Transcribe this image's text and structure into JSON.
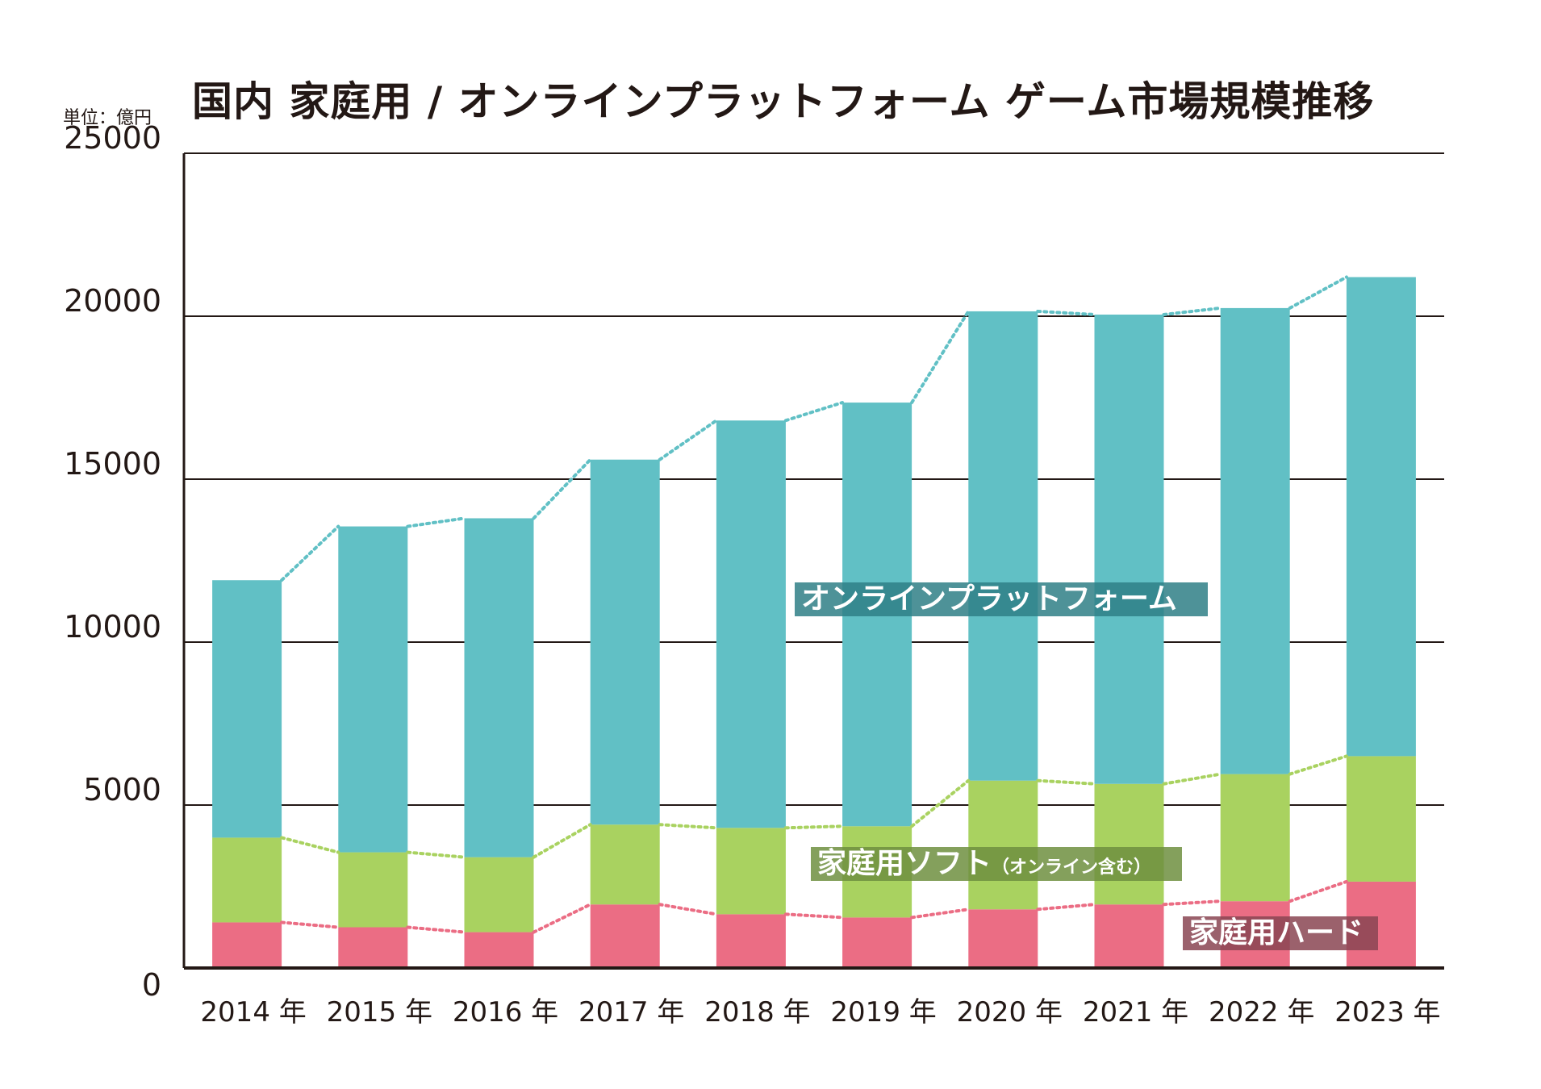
{
  "title": "国内 家庭用 / オンラインプラットフォーム ゲーム市場規模推移",
  "unit_label": "単位：億円",
  "chart_data": {
    "type": "bar",
    "stacked": true,
    "categories": [
      "2014 年",
      "2015 年",
      "2016 年",
      "2017 年",
      "2018 年",
      "2019 年",
      "2020 年",
      "2021 年",
      "2022 年",
      "2023 年"
    ],
    "series": [
      {
        "name": "家庭用ハード",
        "color": "#eb6d84",
        "values": [
          1400,
          1250,
          1100,
          1950,
          1650,
          1550,
          1800,
          1950,
          2050,
          2650
        ]
      },
      {
        "name": "家庭用ソフト（オンライン含む）",
        "color": "#a9d260",
        "values": [
          2600,
          2300,
          2300,
          2450,
          2650,
          2800,
          3950,
          3700,
          3900,
          3850
        ]
      },
      {
        "name": "オンラインプラットフォーム",
        "color": "#61c0c5",
        "values": [
          7900,
          10000,
          10400,
          11200,
          12500,
          13000,
          14400,
          14400,
          14300,
          14700
        ]
      }
    ],
    "yticks": [
      "0",
      "5000",
      "10000",
      "15000",
      "20000",
      "25000"
    ],
    "ylim": [
      0,
      25000
    ],
    "grid": true,
    "labels": {
      "online": "オンラインプラットフォーム",
      "soft_main": "家庭用ソフト",
      "soft_note": "（オンライン含む）",
      "hard": "家庭用ハード"
    },
    "label_bg_colors": {
      "online": "#2f7f86",
      "soft": "#6f8f3f",
      "hard": "#8a4552"
    }
  }
}
